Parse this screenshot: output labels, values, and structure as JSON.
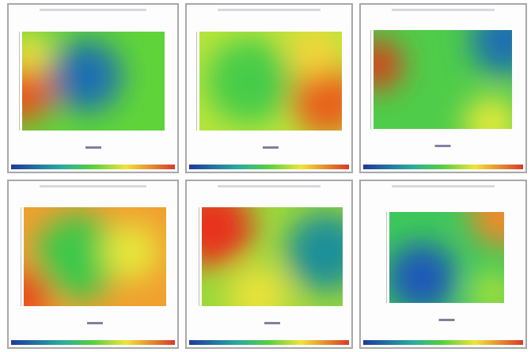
{
  "panels": [
    {
      "base": "#5fd43a",
      "blobs": [
        "#1f6fb0",
        "#e8551a",
        "#f2e23a"
      ]
    },
    {
      "base": "#b8e53a",
      "blobs": [
        "#e8601a",
        "#46cc4a",
        "#f4d53a"
      ]
    },
    {
      "base": "#4fcc4a",
      "blobs": [
        "#d8401a",
        "#1f6fb0",
        "#e2ea3a"
      ]
    },
    {
      "base": "#f0a030",
      "blobs": [
        "#3ec84a",
        "#e84a1a",
        "#e6e83a"
      ]
    },
    {
      "base": "#9ad83a",
      "blobs": [
        "#e8301a",
        "#1d8f98",
        "#e8e23a"
      ]
    },
    {
      "base": "#3ec85a",
      "blobs": [
        "#1f58b8",
        "#ee8a2a",
        "#a8e03a"
      ]
    }
  ]
}
